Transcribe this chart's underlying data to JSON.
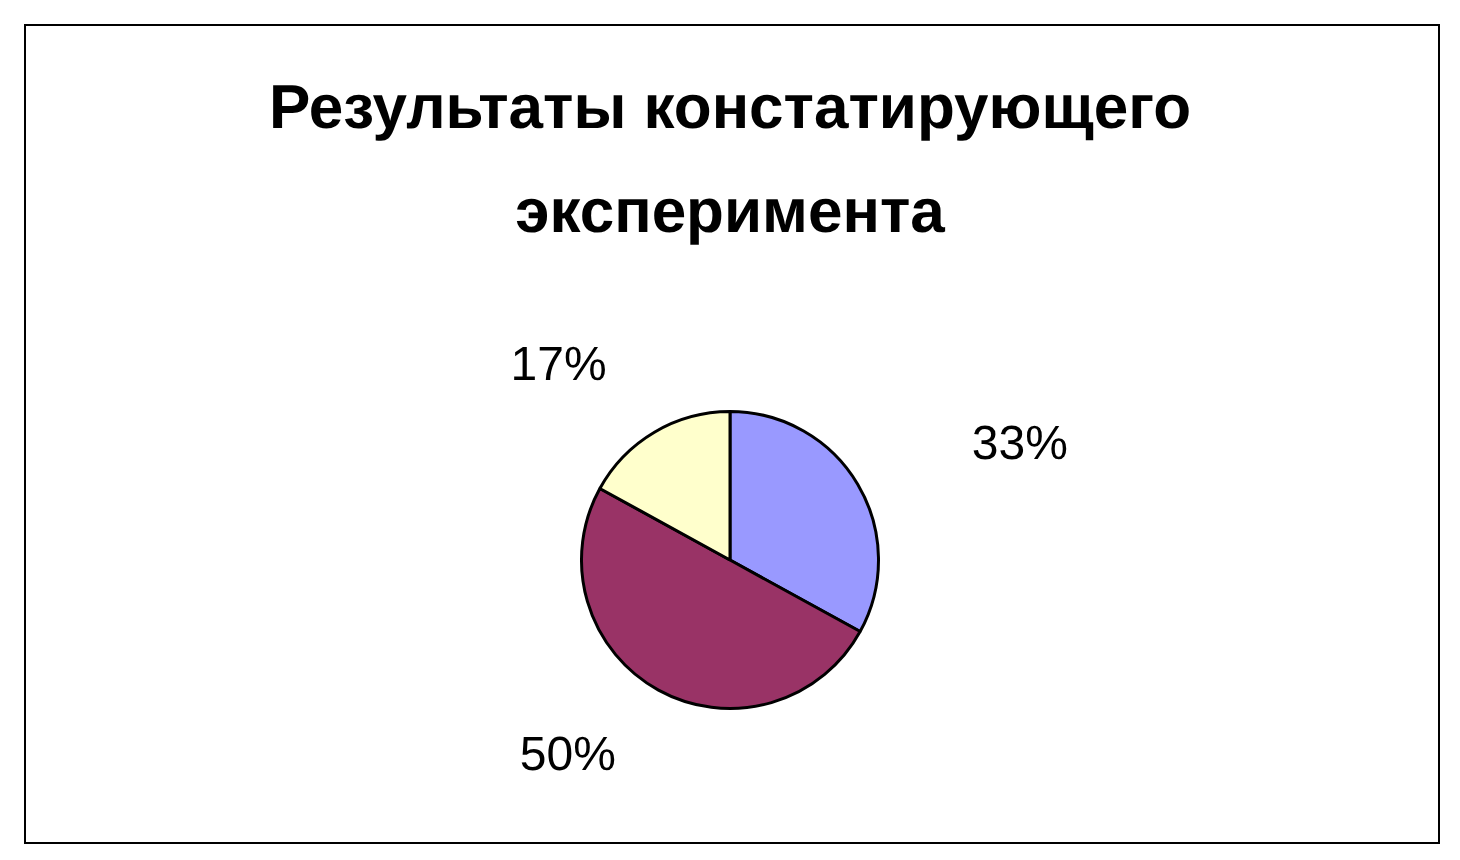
{
  "chart_data": {
    "type": "pie",
    "title": "Результаты констатирующего эксперимента",
    "categories": [
      null,
      null,
      null
    ],
    "values": [
      33,
      50,
      17
    ],
    "colors": [
      "#9999ff",
      "#993366",
      "#ffffcc"
    ],
    "value_labels": [
      "33%",
      "50%",
      "17%"
    ]
  }
}
